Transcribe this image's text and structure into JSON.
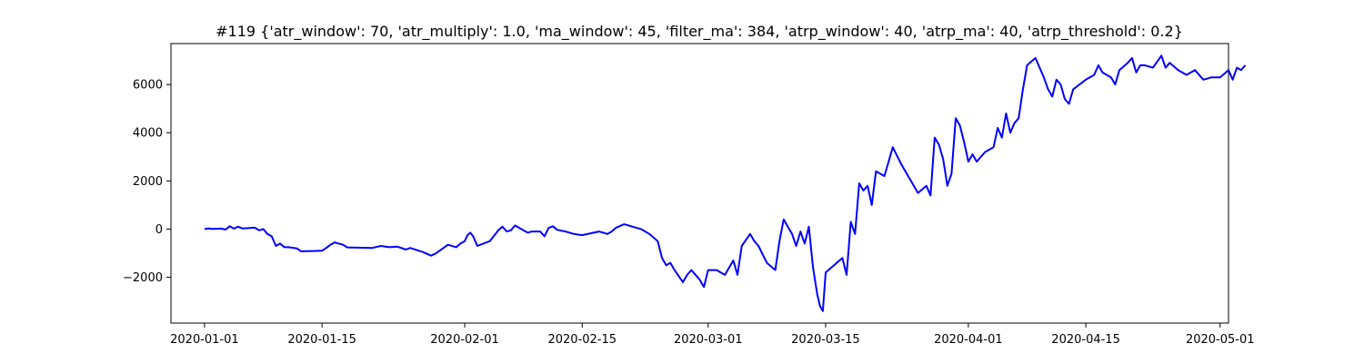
{
  "chart_data": {
    "type": "line",
    "title": "#119 {'atr_window': 70, 'atr_multiply': 1.0, 'ma_window': 45, 'filter_ma': 384, 'atrp_window': 40, 'atrp_ma': 40, 'atrp_threshold': 0.2}",
    "xlabel": "",
    "ylabel": "",
    "xlim": [
      "2019-12-28",
      "2020-05-02"
    ],
    "ylim": [
      -3900,
      7700
    ],
    "x_ticks": [
      "2020-01-01",
      "2020-01-15",
      "2020-02-01",
      "2020-02-15",
      "2020-03-01",
      "2020-03-15",
      "2020-04-01",
      "2020-04-15",
      "2020-05-01"
    ],
    "y_ticks": [
      -2000,
      0,
      2000,
      4000,
      6000
    ],
    "y_tick_labels": [
      "−2000",
      "0",
      "2000",
      "4000",
      "6000"
    ],
    "grid": false,
    "series": [
      {
        "color": "#0000ff",
        "points": [
          [
            "2020-01-01",
            0
          ],
          [
            "2020-01-01",
            30
          ],
          [
            "2020-01-02",
            10
          ],
          [
            "2020-01-03",
            20
          ],
          [
            "2020-01-03",
            -20
          ],
          [
            "2020-01-04",
            120
          ],
          [
            "2020-01-04",
            20
          ],
          [
            "2020-01-05",
            100
          ],
          [
            "2020-01-05",
            30
          ],
          [
            "2020-01-07",
            60
          ],
          [
            "2020-01-07",
            -50
          ],
          [
            "2020-01-08",
            0
          ],
          [
            "2020-01-08",
            -200
          ],
          [
            "2020-01-09",
            -300
          ],
          [
            "2020-01-09",
            -700
          ],
          [
            "2020-01-10",
            -600
          ],
          [
            "2020-01-10",
            -750
          ],
          [
            "2020-01-11",
            -750
          ],
          [
            "2020-01-12",
            -800
          ],
          [
            "2020-01-12",
            -920
          ],
          [
            "2020-01-14",
            -910
          ],
          [
            "2020-01-15",
            -900
          ],
          [
            "2020-01-15",
            -780
          ],
          [
            "2020-01-16",
            -650
          ],
          [
            "2020-01-16",
            -550
          ],
          [
            "2020-01-17",
            -600
          ],
          [
            "2020-01-17",
            -650
          ],
          [
            "2020-01-18",
            -760
          ],
          [
            "2020-01-21",
            -780
          ],
          [
            "2020-01-22",
            -700
          ],
          [
            "2020-01-23",
            -750
          ],
          [
            "2020-01-24",
            -730
          ],
          [
            "2020-01-25",
            -850
          ],
          [
            "2020-01-25",
            -780
          ],
          [
            "2020-01-27",
            -950
          ],
          [
            "2020-01-28",
            -1100
          ],
          [
            "2020-01-28",
            -1020
          ],
          [
            "2020-01-29",
            -900
          ],
          [
            "2020-01-30",
            -650
          ],
          [
            "2020-01-31",
            -750
          ],
          [
            "2020-01-31",
            -600
          ],
          [
            "2020-02-01",
            -500
          ],
          [
            "2020-02-01",
            -250
          ],
          [
            "2020-02-01",
            -150
          ],
          [
            "2020-02-02",
            -300
          ],
          [
            "2020-02-02",
            -700
          ],
          [
            "2020-02-04",
            -500
          ],
          [
            "2020-02-05",
            -50
          ],
          [
            "2020-02-05",
            100
          ],
          [
            "2020-02-06",
            -100
          ],
          [
            "2020-02-06",
            -50
          ],
          [
            "2020-02-07",
            150
          ],
          [
            "2020-02-08",
            -50
          ],
          [
            "2020-02-08",
            -150
          ],
          [
            "2020-02-09",
            -100
          ],
          [
            "2020-02-10",
            -100
          ],
          [
            "2020-02-10",
            -300
          ],
          [
            "2020-02-11",
            50
          ],
          [
            "2020-02-11",
            120
          ],
          [
            "2020-02-12",
            -30
          ],
          [
            "2020-02-13",
            -100
          ],
          [
            "2020-02-14",
            -200
          ],
          [
            "2020-02-15",
            -250
          ],
          [
            "2020-02-17",
            -100
          ],
          [
            "2020-02-18",
            -200
          ],
          [
            "2020-02-18",
            -100
          ],
          [
            "2020-02-19",
            50
          ],
          [
            "2020-02-20",
            200
          ],
          [
            "2020-02-21",
            100
          ],
          [
            "2020-02-22",
            0
          ],
          [
            "2020-02-23",
            -200
          ],
          [
            "2020-02-24",
            -500
          ],
          [
            "2020-02-24",
            -1200
          ],
          [
            "2020-02-25",
            -1500
          ],
          [
            "2020-02-25",
            -1400
          ],
          [
            "2020-02-26",
            -1700
          ],
          [
            "2020-02-27",
            -2200
          ],
          [
            "2020-02-27",
            -1900
          ],
          [
            "2020-02-28",
            -1700
          ],
          [
            "2020-02-29",
            -2100
          ],
          [
            "2020-02-29",
            -2400
          ],
          [
            "2020-03-01",
            -1700
          ],
          [
            "2020-03-02",
            -1700
          ],
          [
            "2020-03-03",
            -1900
          ],
          [
            "2020-03-04",
            -1300
          ],
          [
            "2020-03-04",
            -1900
          ],
          [
            "2020-03-05",
            -700
          ],
          [
            "2020-03-06",
            -200
          ],
          [
            "2020-03-06",
            -500
          ],
          [
            "2020-03-07",
            -700
          ],
          [
            "2020-03-08",
            -1400
          ],
          [
            "2020-03-09",
            -1700
          ],
          [
            "2020-03-09",
            -500
          ],
          [
            "2020-03-10",
            400
          ],
          [
            "2020-03-11",
            -200
          ],
          [
            "2020-03-11",
            -700
          ],
          [
            "2020-03-12",
            -100
          ],
          [
            "2020-03-12",
            -600
          ],
          [
            "2020-03-13",
            100
          ],
          [
            "2020-03-13",
            -1600
          ],
          [
            "2020-03-14",
            -2700
          ],
          [
            "2020-03-14",
            -3200
          ],
          [
            "2020-03-14",
            -3400
          ],
          [
            "2020-03-15",
            -1800
          ],
          [
            "2020-03-17",
            -1200
          ],
          [
            "2020-03-17",
            -1900
          ],
          [
            "2020-03-18",
            300
          ],
          [
            "2020-03-18",
            -200
          ],
          [
            "2020-03-19",
            1900
          ],
          [
            "2020-03-19",
            1600
          ],
          [
            "2020-03-20",
            1800
          ],
          [
            "2020-03-20",
            1000
          ],
          [
            "2020-03-21",
            2400
          ],
          [
            "2020-03-22",
            2200
          ],
          [
            "2020-03-22",
            2800
          ],
          [
            "2020-03-23",
            3400
          ],
          [
            "2020-03-24",
            2700
          ],
          [
            "2020-03-26",
            1500
          ],
          [
            "2020-03-27",
            1800
          ],
          [
            "2020-03-27",
            1400
          ],
          [
            "2020-03-28",
            3800
          ],
          [
            "2020-03-28",
            3500
          ],
          [
            "2020-03-29",
            2900
          ],
          [
            "2020-03-29",
            1800
          ],
          [
            "2020-03-30",
            2300
          ],
          [
            "2020-03-30",
            4600
          ],
          [
            "2020-03-31",
            4300
          ],
          [
            "2020-03-31",
            3600
          ],
          [
            "2020-04-01",
            2800
          ],
          [
            "2020-04-01",
            3100
          ],
          [
            "2020-04-02",
            2800
          ],
          [
            "2020-04-03",
            3200
          ],
          [
            "2020-04-04",
            3400
          ],
          [
            "2020-04-04",
            4200
          ],
          [
            "2020-04-05",
            3800
          ],
          [
            "2020-04-05",
            4800
          ],
          [
            "2020-04-06",
            4000
          ],
          [
            "2020-04-06",
            4400
          ],
          [
            "2020-04-07",
            4600
          ],
          [
            "2020-04-07",
            5800
          ],
          [
            "2020-04-08",
            6800
          ],
          [
            "2020-04-09",
            7100
          ],
          [
            "2020-04-09",
            6700
          ],
          [
            "2020-04-10",
            6300
          ],
          [
            "2020-04-10",
            5800
          ],
          [
            "2020-04-11",
            5500
          ],
          [
            "2020-04-11",
            6200
          ],
          [
            "2020-04-12",
            6000
          ],
          [
            "2020-04-12",
            5400
          ],
          [
            "2020-04-13",
            5200
          ],
          [
            "2020-04-13",
            5800
          ],
          [
            "2020-04-15",
            6200
          ],
          [
            "2020-04-16",
            6400
          ],
          [
            "2020-04-16",
            6800
          ],
          [
            "2020-04-17",
            6500
          ],
          [
            "2020-04-18",
            6300
          ],
          [
            "2020-04-18",
            6000
          ],
          [
            "2020-04-19",
            6600
          ],
          [
            "2020-04-20",
            6900
          ],
          [
            "2020-04-20",
            7100
          ],
          [
            "2020-04-21",
            6500
          ],
          [
            "2020-04-21",
            6800
          ],
          [
            "2020-04-22",
            6800
          ],
          [
            "2020-04-23",
            6700
          ],
          [
            "2020-04-24",
            7200
          ],
          [
            "2020-04-24",
            6700
          ],
          [
            "2020-04-25",
            6900
          ],
          [
            "2020-04-26",
            6600
          ],
          [
            "2020-04-27",
            6400
          ],
          [
            "2020-04-28",
            6600
          ],
          [
            "2020-04-29",
            6200
          ],
          [
            "2020-04-30",
            6300
          ],
          [
            "2020-05-01",
            6300
          ],
          [
            "2020-05-02",
            6600
          ],
          [
            "2020-05-02",
            6200
          ],
          [
            "2020-05-03",
            6700
          ],
          [
            "2020-05-03",
            6600
          ],
          [
            "2020-05-04",
            6800
          ]
        ]
      }
    ]
  }
}
